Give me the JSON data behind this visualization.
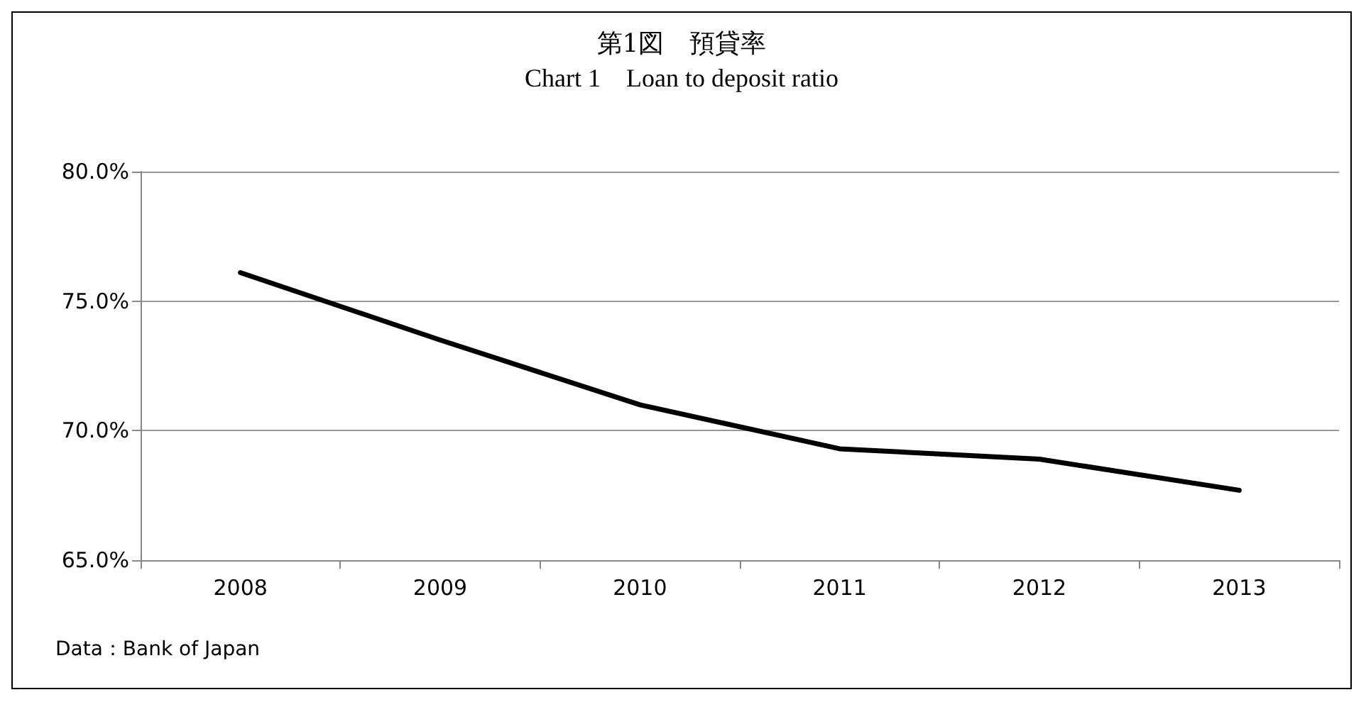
{
  "chart_data": {
    "type": "line",
    "title": "第1図　預貸率",
    "subtitle": "Chart 1　Loan to deposit ratio",
    "categories": [
      "2008",
      "2009",
      "2010",
      "2011",
      "2012",
      "2013"
    ],
    "series": [
      {
        "color": "#000000",
        "values": [
          76.1,
          73.5,
          71.0,
          69.3,
          68.9,
          67.7
        ]
      }
    ],
    "ylim": [
      65,
      80
    ],
    "yticks": [
      {
        "value": 65,
        "label": "65.0%"
      },
      {
        "value": 70,
        "label": "70.0%"
      },
      {
        "value": 75,
        "label": "75.0%"
      },
      {
        "value": 80,
        "label": "80.0%"
      }
    ],
    "grid": "y",
    "marker": "none",
    "line_style": "solid",
    "annotations": [
      "Data：Bank of Japan"
    ]
  }
}
